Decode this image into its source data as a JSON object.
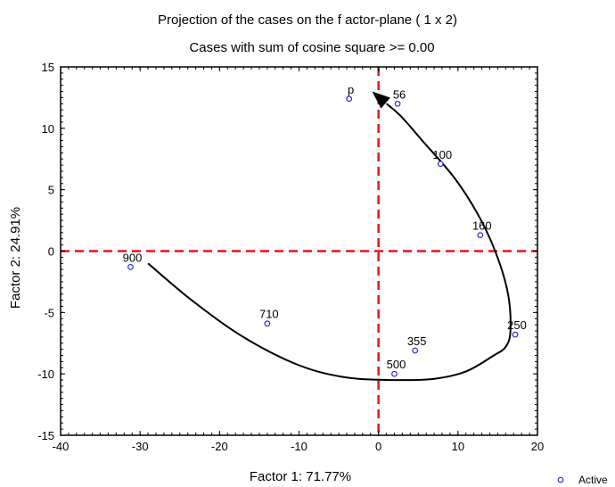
{
  "chart_data": {
    "type": "scatter",
    "title": "Projection of the cases on the f actor-plane (  1 x   2)",
    "subtitle": "Cases with sum of cosine square >=  0.00",
    "xlabel": "Factor 1: 71.77%",
    "ylabel": "Factor 2: 24.91%",
    "xlim": [
      -40,
      20
    ],
    "ylim": [
      -15,
      15
    ],
    "xticks": [
      -40,
      -30,
      -20,
      -10,
      0,
      10,
      20
    ],
    "yticks": [
      -15,
      -10,
      -5,
      0,
      5,
      10,
      15
    ],
    "grid": false,
    "reference_lines": {
      "x": 0,
      "y": 0,
      "color": "#e8141c",
      "style": "dashed"
    },
    "point_color": "#1a1adb",
    "curve_color": "#000000",
    "series": [
      {
        "name": "Active",
        "points": [
          {
            "label": "p",
            "x": -3.7,
            "y": 12.4
          },
          {
            "label": "56",
            "x": 2.4,
            "y": 12.0
          },
          {
            "label": "100",
            "x": 7.8,
            "y": 7.1
          },
          {
            "label": "160",
            "x": 12.8,
            "y": 1.3
          },
          {
            "label": "250",
            "x": 17.2,
            "y": -6.8
          },
          {
            "label": "355",
            "x": 4.6,
            "y": -8.1
          },
          {
            "label": "500",
            "x": 2.0,
            "y": -10.0
          },
          {
            "label": "710",
            "x": -14.0,
            "y": -5.9
          },
          {
            "label": "900",
            "x": -31.2,
            "y": -1.3
          }
        ]
      }
    ],
    "trajectory": [
      [
        -29.0,
        -1.0
      ],
      [
        -23.5,
        -4.0
      ],
      [
        -17.0,
        -7.0
      ],
      [
        -10.0,
        -9.3
      ],
      [
        -4.0,
        -10.3
      ],
      [
        2.0,
        -10.5
      ],
      [
        7.0,
        -10.4
      ],
      [
        11.0,
        -9.8
      ],
      [
        14.5,
        -8.5
      ],
      [
        16.0,
        -7.8
      ],
      [
        16.6,
        -6.5
      ],
      [
        16.3,
        -3.5
      ],
      [
        14.8,
        -0.2
      ],
      [
        12.5,
        3.0
      ],
      [
        9.5,
        6.0
      ],
      [
        5.5,
        9.0
      ],
      [
        2.8,
        11.0
      ],
      [
        1.0,
        12.0
      ]
    ],
    "arrow_head": {
      "tip": [
        -0.8,
        13.0
      ]
    },
    "legend": {
      "position": "bottom-right",
      "entries": [
        "Active"
      ]
    }
  }
}
